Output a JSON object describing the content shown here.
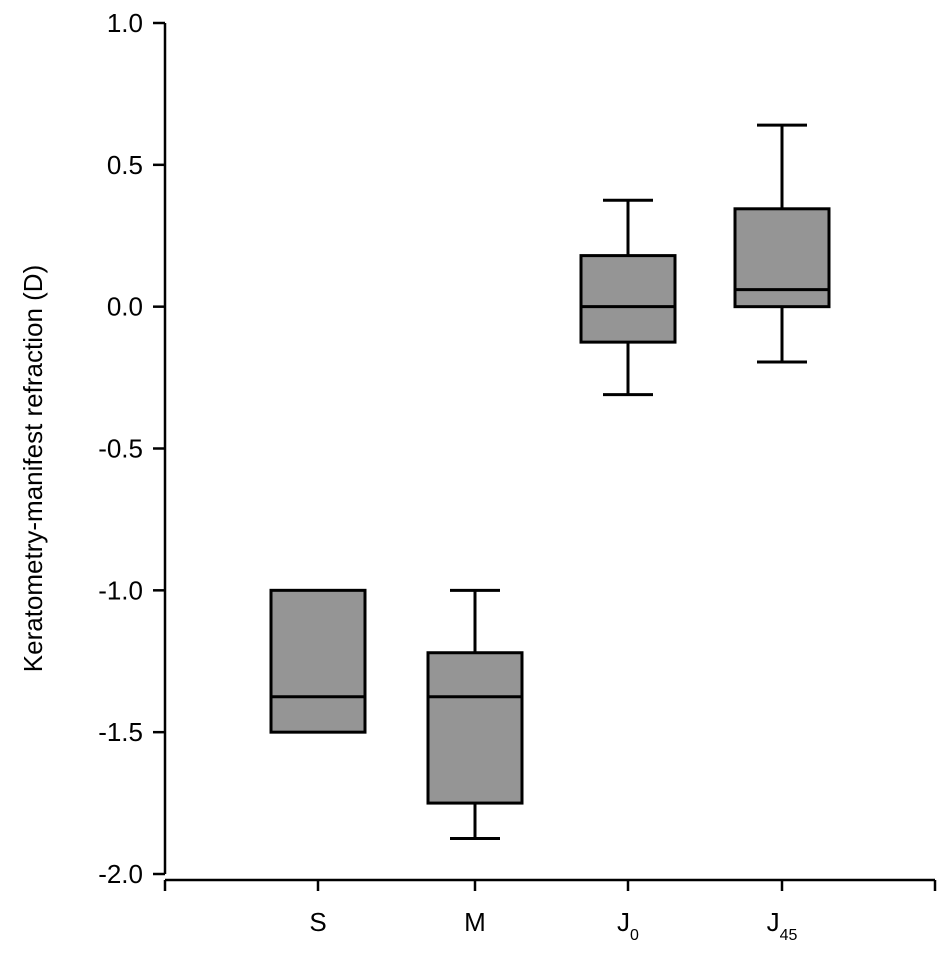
{
  "chart_data": {
    "type": "box",
    "ylabel": "Keratometry-manifest refraction (D)",
    "xlabel": "",
    "ylim": [
      -2.0,
      1.0
    ],
    "yticks": [
      1.0,
      0.5,
      0.0,
      -0.5,
      -1.0,
      -1.5,
      -2.0
    ],
    "ytick_labels": [
      "1.0",
      "0.5",
      "0.0",
      "-0.5",
      "-1.0",
      "-1.5",
      "-2.0"
    ],
    "categories": [
      {
        "main": "S",
        "sub": ""
      },
      {
        "main": "M",
        "sub": ""
      },
      {
        "main": "J",
        "sub": "0"
      },
      {
        "main": "J",
        "sub": "45"
      }
    ],
    "boxes": [
      {
        "whisker_low": -1.5,
        "q1": -1.5,
        "median": -1.375,
        "q3": -1.0,
        "whisker_high": -1.0
      },
      {
        "whisker_low": -1.875,
        "q1": -1.75,
        "median": -1.375,
        "q3": -1.22,
        "whisker_high": -1.0
      },
      {
        "whisker_low": -0.31,
        "q1": -0.125,
        "median": 0.0,
        "q3": 0.18,
        "whisker_high": 0.375
      },
      {
        "whisker_low": -0.195,
        "q1": 0.0,
        "median": 0.06,
        "q3": 0.345,
        "whisker_high": 0.64
      }
    ],
    "box_color": "#959595",
    "grid": false,
    "legend": "none"
  }
}
